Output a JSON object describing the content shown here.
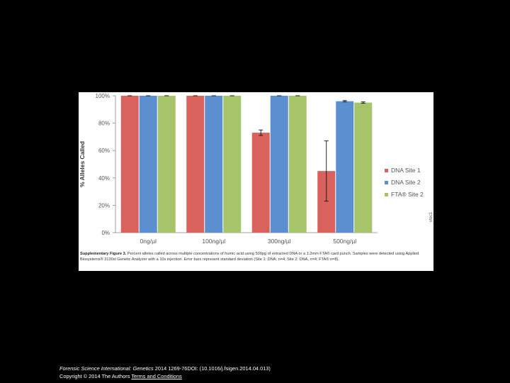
{
  "chart_data": {
    "type": "bar",
    "ylabel": "% Alleles Called",
    "xlabel": "",
    "ylim": [
      0,
      100
    ],
    "yticks": [
      "0%",
      "20%",
      "40%",
      "60%",
      "80%",
      "100%"
    ],
    "ytick_values": [
      0,
      20,
      40,
      60,
      80,
      100
    ],
    "categories": [
      "0ng/µl",
      "100ng/µl",
      "300ng/µl",
      "500ng/µl"
    ],
    "series": [
      {
        "name": "DNA Site 1",
        "color": "#d9625c",
        "values": [
          100,
          100,
          73,
          45
        ],
        "errors": [
          0,
          0,
          2,
          22
        ]
      },
      {
        "name": "DNA Site 2",
        "color": "#5b8fd0",
        "values": [
          100,
          100,
          100,
          96
        ],
        "errors": [
          0,
          0,
          0,
          0.5
        ]
      },
      {
        "name": "FTA® Site 2",
        "color": "#a6c46a",
        "values": [
          100,
          100,
          100,
          95
        ],
        "errors": [
          0,
          0,
          0,
          0.5
        ]
      }
    ],
    "legend_position": "right",
    "grid": false,
    "side_label": "vtec1"
  },
  "caption": {
    "label": "Supplementary Figure 3.",
    "text": "Percent alleles called across multiple concentrations of humic acid using 500pg of extracted DNA or a 1.2mm FTA® card punch. Samples were detected using Applied Biosystems® 3130xl Genetic Analyzer with a 10s injection. Error bars represent standard deviation (Site 1: DNA, n=4; Site 2: DNA, n=4; FTA® n=8)."
  },
  "footer": {
    "journal": "Forensic Science International: Genetics",
    "citation": " 2014 1269-76DOI: (10.1016/j.fsigen.2014.04.013)",
    "copyright": "Copyright © 2014 The Authors",
    "link": "Terms and Conditions"
  }
}
